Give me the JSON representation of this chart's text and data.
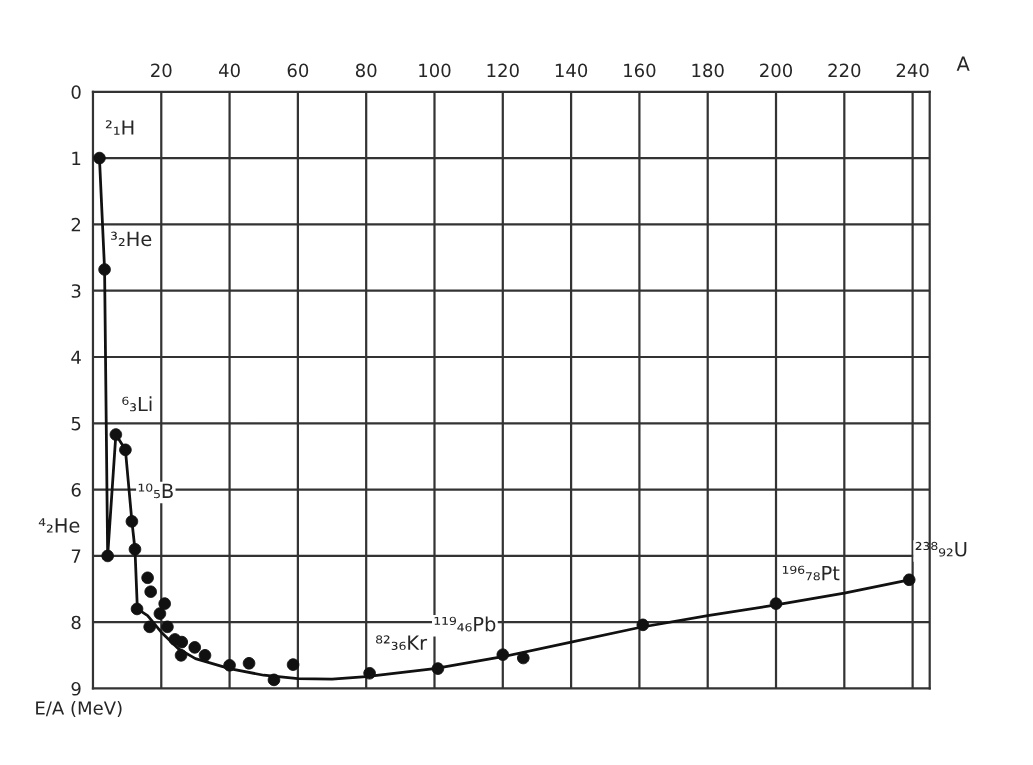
{
  "chart_data": {
    "type": "scatter",
    "xlabel": "A",
    "ylabel": "E/A (MeV)",
    "xlim": [
      0,
      245
    ],
    "ylim": [
      9,
      0
    ],
    "xticks": [
      20,
      40,
      60,
      80,
      100,
      120,
      140,
      160,
      180,
      200,
      220,
      240
    ],
    "yticks": [
      0,
      1,
      2,
      3,
      4,
      5,
      6,
      7,
      8,
      9
    ],
    "grid": true,
    "marker": "circle",
    "series": [
      {
        "color": "#111111",
        "x": [
          1.9,
          3.4,
          4.3,
          6.7,
          9.5,
          11.4,
          12.3,
          16,
          16.9,
          12.9,
          16.6,
          21,
          19.6,
          21.8,
          24,
          26,
          25.8,
          29.8,
          32.8,
          40,
          45.7,
          53,
          58.6,
          81,
          101,
          120,
          126,
          161,
          200,
          239
        ],
        "values": [
          1.0,
          2.68,
          7.0,
          5.17,
          5.4,
          6.48,
          6.9,
          7.33,
          7.54,
          7.8,
          8.07,
          7.72,
          7.87,
          8.07,
          8.26,
          8.3,
          8.5,
          8.38,
          8.5,
          8.65,
          8.62,
          8.87,
          8.64,
          8.77,
          8.7,
          8.49,
          8.54,
          8.04,
          7.72,
          7.36
        ]
      },
      {
        "type": "line",
        "color": "#111111",
        "line_style": "solid",
        "marker": "none",
        "x": [
          1.9,
          3.4,
          4.3,
          6.7,
          9.5,
          11.4,
          12.3,
          13,
          16,
          20,
          25,
          30,
          40,
          50,
          60,
          70,
          80,
          100,
          120,
          140,
          160,
          180,
          200,
          220,
          239
        ],
        "values": [
          1.0,
          2.68,
          7.0,
          5.17,
          5.4,
          6.48,
          6.9,
          7.8,
          7.9,
          8.15,
          8.4,
          8.55,
          8.7,
          8.8,
          8.85,
          8.86,
          8.82,
          8.7,
          8.52,
          8.3,
          8.08,
          7.9,
          7.74,
          7.56,
          7.36
        ]
      }
    ],
    "annotations": [
      {
        "text": "²₁H",
        "x": 1.9,
        "y": 1.0
      },
      {
        "text": "³₂He",
        "x": 3.4,
        "y": 2.68
      },
      {
        "text": "⁶₃Li",
        "x": 6.7,
        "y": 5.17
      },
      {
        "text": "¹⁰₅B",
        "x": 11.4,
        "y": 6.48
      },
      {
        "text": "⁴₂He",
        "x": 4.3,
        "y": 7.0
      },
      {
        "text": "⁸²₃₆Kr",
        "x": 81,
        "y": 8.77
      },
      {
        "text": "¹¹⁹₄₆Pb",
        "x": 120,
        "y": 8.49
      },
      {
        "text": "¹⁹⁶₇₈Pt",
        "x": 200,
        "y": 7.72
      },
      {
        "text": "²³⁸₉₂U",
        "x": 239,
        "y": 7.36
      }
    ]
  }
}
